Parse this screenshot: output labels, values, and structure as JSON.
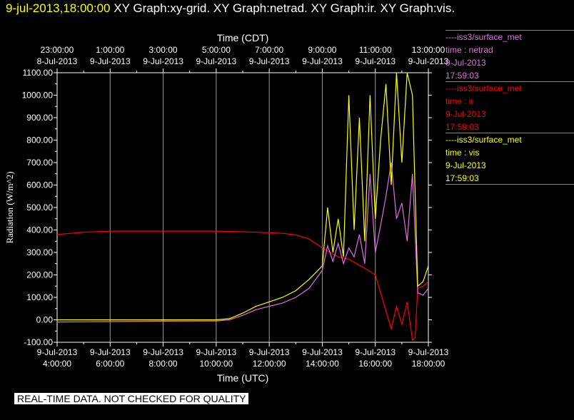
{
  "header": {
    "timestamp": "9-jul-2013,18:00:00",
    "graph_titles": "XY Graph:xy-grid.  XY Graph:netrad.  XY Graph:ir.  XY Graph:vis."
  },
  "legend": [
    {
      "source": "----iss3/surface_met",
      "variable": "time : netrad",
      "date": "9-Jul-2013",
      "time": "17:59:03",
      "color": "#e070e0"
    },
    {
      "source": "----iss3/surface_met",
      "variable": "time : ir",
      "date": "9-Jul-2013",
      "time": "17:59:03",
      "color": "#ff0000"
    },
    {
      "source": "----iss3/surface_met",
      "variable": "time : vis",
      "date": "9-Jul-2013",
      "time": "17:59:03",
      "color": "#ffff00"
    }
  ],
  "disclaimer": "REAL-TIME DATA. NOT CHECKED FOR QUALITY",
  "chart_data": {
    "type": "line",
    "ylabel": "Radiation (W/m^2)",
    "xlabel_bottom": "Time (UTC)",
    "xlabel_top": "Time (CDT)",
    "ylim": [
      -100,
      1100
    ],
    "xlim_hours_utc": [
      4,
      18
    ],
    "grid": true,
    "legend_position": "right",
    "y_ticks": [
      "1100.00",
      "1000.00",
      "900.00",
      "800.00",
      "700.00",
      "600.00",
      "500.00",
      "400.00",
      "300.00",
      "200.00",
      "100.00",
      "0.00",
      "-100.00"
    ],
    "x_ticks_bottom": [
      {
        "date": "9-Jul-2013",
        "time": "4:00:00"
      },
      {
        "date": "9-Jul-2013",
        "time": "6:00:00"
      },
      {
        "date": "9-Jul-2013",
        "time": "8:00:00"
      },
      {
        "date": "9-Jul-2013",
        "time": "10:00:00"
      },
      {
        "date": "9-Jul-2013",
        "time": "12:00:00"
      },
      {
        "date": "9-Jul-2013",
        "time": "14:00:00"
      },
      {
        "date": "9-Jul-2013",
        "time": "16:00:00"
      },
      {
        "date": "9-Jul-2013",
        "time": "18:00:00"
      }
    ],
    "x_ticks_top": [
      {
        "time": "23:00:00",
        "date": "8-Jul-2013"
      },
      {
        "time": "1:00:00",
        "date": "9-Jul-2013"
      },
      {
        "time": "3:00:00",
        "date": "9-Jul-2013"
      },
      {
        "time": "5:00:00",
        "date": "9-Jul-2013"
      },
      {
        "time": "7:00:00",
        "date": "9-Jul-2013"
      },
      {
        "time": "9:00:00",
        "date": "9-Jul-2013"
      },
      {
        "time": "11:00:00",
        "date": "9-Jul-2013"
      },
      {
        "time": "13:00:00",
        "date": "9-Jul-2013"
      }
    ],
    "series": [
      {
        "name": "ir",
        "color": "#ff0000",
        "x": [
          4.0,
          5.0,
          6.0,
          7.0,
          8.0,
          9.0,
          10.0,
          11.0,
          12.0,
          12.5,
          13.0,
          13.5,
          14.0,
          14.3,
          14.6,
          15.0,
          15.3,
          15.6,
          16.0,
          16.2,
          16.4,
          16.6,
          16.8,
          17.0,
          17.2,
          17.4,
          17.5,
          17.6,
          17.8,
          18.0
        ],
        "y": [
          380,
          390,
          395,
          395,
          395,
          395,
          395,
          392,
          388,
          385,
          378,
          360,
          320,
          300,
          280,
          270,
          250,
          230,
          200,
          120,
          40,
          -40,
          60,
          -20,
          80,
          -90,
          -80,
          140,
          150,
          170
        ]
      },
      {
        "name": "netrad",
        "color": "#e070e0",
        "x": [
          4.0,
          6.0,
          8.0,
          10.0,
          10.5,
          11.0,
          11.5,
          12.0,
          12.5,
          13.0,
          13.5,
          14.0,
          14.2,
          14.4,
          14.6,
          14.8,
          15.0,
          15.2,
          15.4,
          15.6,
          15.8,
          16.0,
          16.2,
          16.4,
          16.6,
          16.8,
          17.0,
          17.2,
          17.4,
          17.6,
          17.8,
          18.0
        ],
        "y": [
          -10,
          -8,
          -6,
          -5,
          0,
          20,
          45,
          60,
          75,
          100,
          140,
          220,
          330,
          260,
          340,
          250,
          320,
          280,
          380,
          250,
          650,
          300,
          420,
          550,
          700,
          450,
          520,
          350,
          650,
          120,
          110,
          140
        ]
      },
      {
        "name": "vis",
        "color": "#ffff00",
        "x": [
          4.0,
          6.0,
          8.0,
          10.0,
          10.5,
          11.0,
          11.5,
          12.0,
          12.5,
          13.0,
          13.5,
          14.0,
          14.2,
          14.4,
          14.6,
          14.8,
          15.0,
          15.2,
          15.4,
          15.6,
          15.8,
          16.0,
          16.2,
          16.4,
          16.6,
          16.8,
          17.0,
          17.2,
          17.4,
          17.6,
          17.8,
          18.0
        ],
        "y": [
          0,
          0,
          0,
          0,
          5,
          30,
          60,
          80,
          100,
          130,
          180,
          240,
          500,
          300,
          450,
          280,
          1000,
          400,
          900,
          350,
          1000,
          450,
          800,
          1050,
          600,
          1100,
          700,
          1100,
          1000,
          150,
          170,
          240
        ]
      }
    ]
  }
}
